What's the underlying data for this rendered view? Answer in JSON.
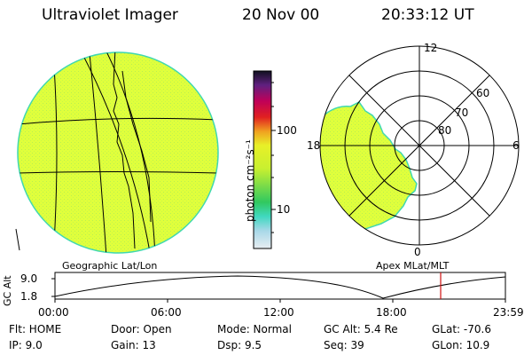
{
  "header": {
    "instrument": "Ultraviolet Imager",
    "date": "20 Nov 00",
    "time": "20:33:12 UT"
  },
  "colorbar": {
    "unit_label": "photon cm⁻²s⁻¹",
    "tick_100": "100",
    "tick_10": "10"
  },
  "polar": {
    "label_12": "12",
    "label_18": "18",
    "label_6": "6",
    "label_0": "0",
    "label_60": "60",
    "label_70": "70",
    "label_80": "80"
  },
  "panel_labels": {
    "left": "Geographic Lat/Lon",
    "right": "Apex MLat/MLT"
  },
  "altitude_plot": {
    "axis_label": "GC Alt",
    "y_max": "9.0",
    "y_min": "1.8",
    "x_ticks": [
      "00:00",
      "06:00",
      "12:00",
      "18:00",
      "23:59"
    ]
  },
  "info": {
    "flt": "Flt: HOME",
    "ip": "IP:  9.0",
    "door": "Door: Open",
    "gain": "Gain: 13",
    "mode": "Mode: Normal",
    "dsp": "Dsp:     9.5",
    "gcalt": "GC Alt: 5.4 Re",
    "seq": "Seq: 39",
    "glat": "GLat: -70.6",
    "glon": "GLon:  10.9"
  },
  "colors": {
    "fill": "#e0ff3c",
    "rim": "#40d8b0",
    "marker": "#d01010"
  }
}
